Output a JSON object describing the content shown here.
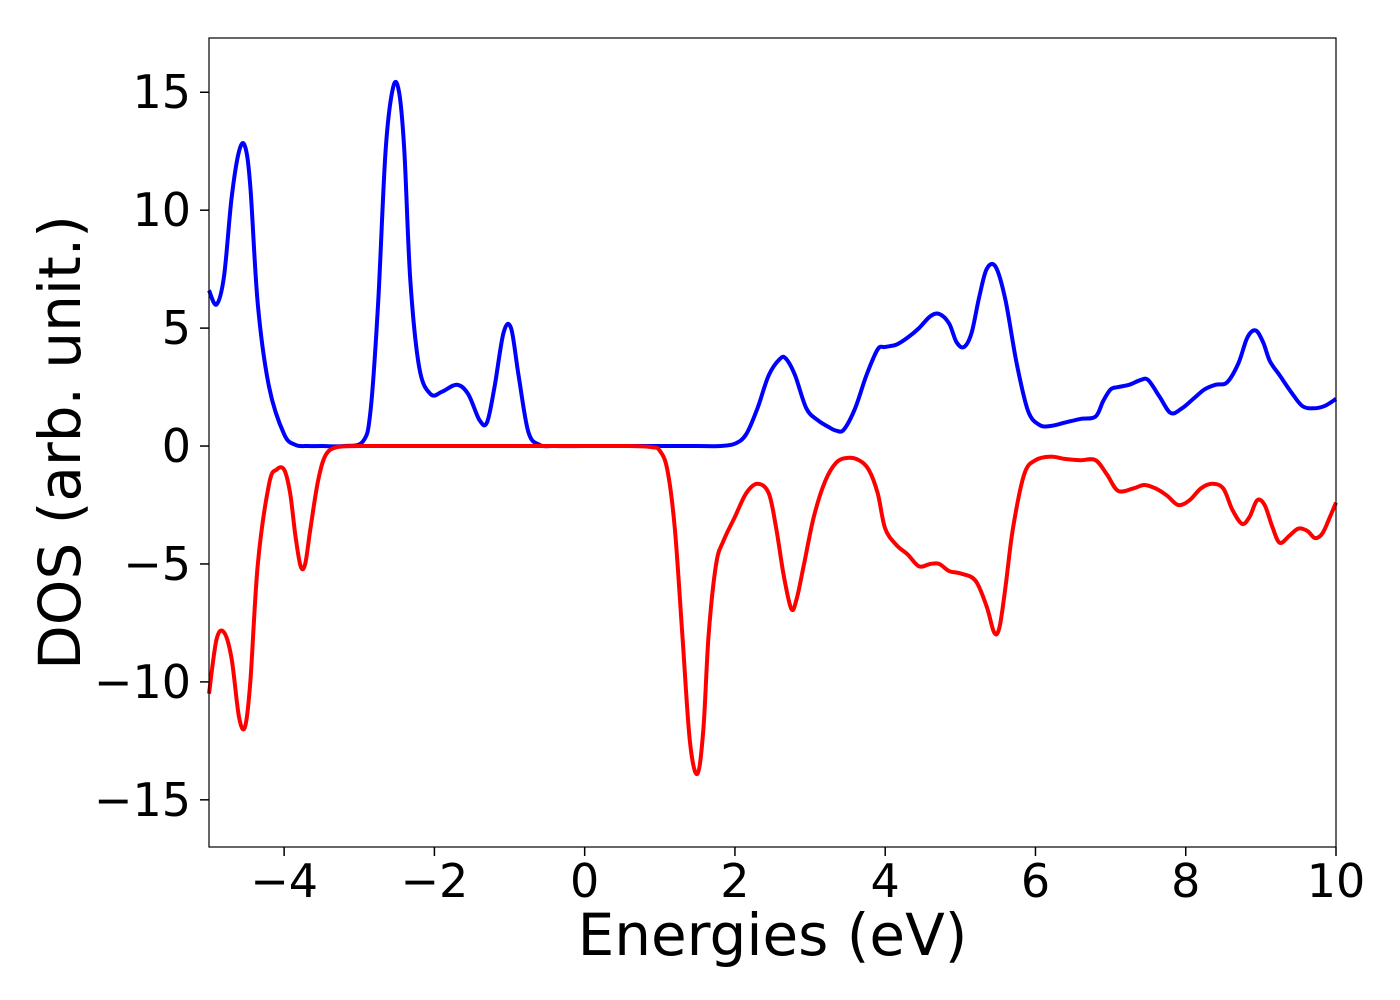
{
  "chart_data": {
    "type": "line",
    "title": "",
    "xlabel": "Energies (eV)",
    "ylabel": "DOS (arb. unit.)",
    "xlim": [
      -5,
      10
    ],
    "ylim": [
      -17,
      17.3
    ],
    "grid": false,
    "xticks": [
      -4,
      -2,
      0,
      2,
      4,
      6,
      8,
      10
    ],
    "xtick_labels": [
      "−4",
      "−2",
      "0",
      "2",
      "4",
      "6",
      "8",
      "10"
    ],
    "yticks": [
      15,
      10,
      5,
      0,
      -5,
      -10,
      -15
    ],
    "ytick_labels": [
      "15",
      "10",
      "5",
      "0",
      "−5",
      "−10",
      "−15"
    ],
    "series": [
      {
        "color": "#0000ff",
        "x": [
          -5.0,
          -4.9,
          -4.8,
          -4.7,
          -4.6,
          -4.52,
          -4.45,
          -4.35,
          -4.2,
          -4.0,
          -3.85,
          -3.7,
          -3.5,
          -3.2,
          -2.95,
          -2.85,
          -2.75,
          -2.65,
          -2.55,
          -2.47,
          -2.4,
          -2.32,
          -2.2,
          -2.05,
          -1.9,
          -1.7,
          -1.55,
          -1.4,
          -1.3,
          -1.2,
          -1.08,
          -0.98,
          -0.88,
          -0.75,
          -0.6,
          -0.4,
          0.0,
          0.5,
          1.0,
          1.5,
          1.8,
          2.0,
          2.15,
          2.3,
          2.45,
          2.6,
          2.68,
          2.8,
          2.95,
          3.1,
          3.25,
          3.35,
          3.45,
          3.6,
          3.75,
          3.9,
          4.0,
          4.15,
          4.3,
          4.45,
          4.6,
          4.72,
          4.85,
          4.95,
          5.05,
          5.15,
          5.25,
          5.35,
          5.47,
          5.6,
          5.75,
          5.9,
          6.05,
          6.2,
          6.4,
          6.6,
          6.8,
          6.9,
          7.0,
          7.1,
          7.25,
          7.4,
          7.5,
          7.65,
          7.8,
          7.95,
          8.1,
          8.25,
          8.4,
          8.55,
          8.7,
          8.82,
          8.93,
          9.03,
          9.12,
          9.25,
          9.4,
          9.55,
          9.7,
          9.85,
          10.0
        ],
        "y": [
          6.6,
          6.0,
          7.2,
          10.5,
          12.5,
          12.7,
          11.0,
          6.0,
          2.5,
          0.5,
          0.05,
          0.0,
          0.0,
          0.0,
          0.2,
          1.5,
          6.0,
          12.5,
          15.2,
          15.0,
          12.5,
          7.0,
          3.3,
          2.2,
          2.3,
          2.6,
          2.2,
          1.1,
          1.0,
          2.5,
          4.8,
          5.0,
          3.0,
          0.6,
          0.05,
          0.0,
          0.0,
          0.0,
          0.0,
          0.0,
          0.0,
          0.1,
          0.5,
          1.6,
          3.0,
          3.7,
          3.7,
          3.0,
          1.6,
          1.1,
          0.8,
          0.65,
          0.7,
          1.6,
          3.0,
          4.1,
          4.2,
          4.3,
          4.6,
          5.0,
          5.5,
          5.6,
          5.2,
          4.4,
          4.2,
          4.8,
          6.3,
          7.5,
          7.6,
          6.2,
          3.5,
          1.5,
          0.9,
          0.85,
          1.0,
          1.15,
          1.25,
          1.9,
          2.4,
          2.5,
          2.6,
          2.8,
          2.8,
          2.1,
          1.4,
          1.6,
          2.0,
          2.4,
          2.6,
          2.7,
          3.5,
          4.6,
          4.9,
          4.4,
          3.6,
          3.0,
          2.3,
          1.7,
          1.6,
          1.7,
          2.0
        ]
      },
      {
        "color": "#ff0000",
        "x": [
          -5.0,
          -4.9,
          -4.8,
          -4.7,
          -4.6,
          -4.52,
          -4.45,
          -4.35,
          -4.2,
          -4.1,
          -4.0,
          -3.92,
          -3.85,
          -3.78,
          -3.72,
          -3.65,
          -3.55,
          -3.45,
          -3.3,
          -3.0,
          -2.5,
          -2.0,
          -1.0,
          0.0,
          0.6,
          0.9,
          1.0,
          1.1,
          1.2,
          1.3,
          1.4,
          1.5,
          1.58,
          1.65,
          1.75,
          1.85,
          2.0,
          2.15,
          2.3,
          2.45,
          2.55,
          2.65,
          2.75,
          2.82,
          2.92,
          3.05,
          3.2,
          3.35,
          3.5,
          3.65,
          3.78,
          3.9,
          4.0,
          4.15,
          4.3,
          4.45,
          4.6,
          4.72,
          4.85,
          5.0,
          5.2,
          5.35,
          5.45,
          5.52,
          5.6,
          5.7,
          5.85,
          6.0,
          6.2,
          6.4,
          6.6,
          6.8,
          6.95,
          7.1,
          7.3,
          7.45,
          7.6,
          7.75,
          7.9,
          8.05,
          8.2,
          8.35,
          8.5,
          8.62,
          8.75,
          8.85,
          8.95,
          9.05,
          9.15,
          9.25,
          9.38,
          9.5,
          9.62,
          9.72,
          9.82,
          9.92,
          10.0
        ],
        "y": [
          -10.5,
          -8.2,
          -7.9,
          -9.0,
          -11.5,
          -11.9,
          -10.0,
          -5.0,
          -1.6,
          -1.0,
          -1.0,
          -2.0,
          -3.8,
          -5.1,
          -5.0,
          -3.5,
          -1.5,
          -0.4,
          -0.05,
          0.0,
          0.0,
          0.0,
          0.0,
          0.0,
          0.0,
          -0.05,
          -0.2,
          -1.0,
          -3.5,
          -8.0,
          -12.5,
          -13.9,
          -12.0,
          -8.0,
          -5.0,
          -4.0,
          -3.0,
          -2.0,
          -1.6,
          -2.0,
          -3.5,
          -5.5,
          -6.9,
          -6.5,
          -5.0,
          -3.0,
          -1.5,
          -0.7,
          -0.5,
          -0.6,
          -1.0,
          -2.0,
          -3.5,
          -4.2,
          -4.6,
          -5.1,
          -5.0,
          -5.0,
          -5.3,
          -5.4,
          -5.7,
          -6.8,
          -7.9,
          -7.7,
          -6.0,
          -3.5,
          -1.2,
          -0.6,
          -0.45,
          -0.55,
          -0.6,
          -0.6,
          -1.2,
          -1.9,
          -1.8,
          -1.65,
          -1.8,
          -2.1,
          -2.5,
          -2.3,
          -1.8,
          -1.6,
          -1.8,
          -2.7,
          -3.3,
          -3.0,
          -2.3,
          -2.5,
          -3.4,
          -4.1,
          -3.8,
          -3.5,
          -3.6,
          -3.9,
          -3.7,
          -3.0,
          -2.4
        ]
      }
    ]
  }
}
